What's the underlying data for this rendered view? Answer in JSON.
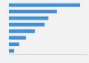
{
  "chart_data": {
    "type": "bar",
    "orientation": "horizontal",
    "categories": [
      null,
      null,
      null,
      null,
      null,
      null,
      null,
      null
    ],
    "values": [
      285,
      192,
      158,
      143,
      104,
      68,
      41,
      21
    ],
    "color": "#3e8fd5",
    "xlim": [
      0,
      310
    ],
    "grid": false,
    "tick_labels": false
  }
}
